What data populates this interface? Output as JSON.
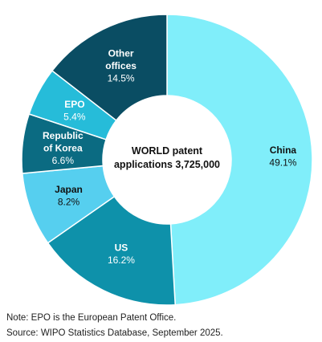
{
  "chart_data": {
    "type": "pie",
    "donut": true,
    "center_label": [
      "WORLD patent",
      "applications 3,725,000"
    ],
    "slices": [
      {
        "label": [
          "China"
        ],
        "value": 49.1,
        "value_label": "49.1%",
        "color": "#80eefa",
        "text_color": "#111111"
      },
      {
        "label": [
          "US"
        ],
        "value": 16.2,
        "value_label": "16.2%",
        "color": "#0e91aa",
        "text_color": "#ffffff"
      },
      {
        "label": [
          "Japan"
        ],
        "value": 8.2,
        "value_label": "8.2%",
        "color": "#56cfef",
        "text_color": "#111111"
      },
      {
        "label": [
          "Republic",
          "of Korea"
        ],
        "value": 6.6,
        "value_label": "6.6%",
        "color": "#0b6b82",
        "text_color": "#ffffff"
      },
      {
        "label": [
          "EPO"
        ],
        "value": 5.4,
        "value_label": "5.4%",
        "color": "#26bcd9",
        "text_color": "#ffffff"
      },
      {
        "label": [
          "Other",
          "offices"
        ],
        "value": 14.5,
        "value_label": "14.5%",
        "color": "#0a4d63",
        "text_color": "#ffffff"
      }
    ]
  },
  "notes": {
    "note": "Note: EPO is the European Patent Office.",
    "source": "Source: WIPO Statistics Database, September 2025."
  }
}
